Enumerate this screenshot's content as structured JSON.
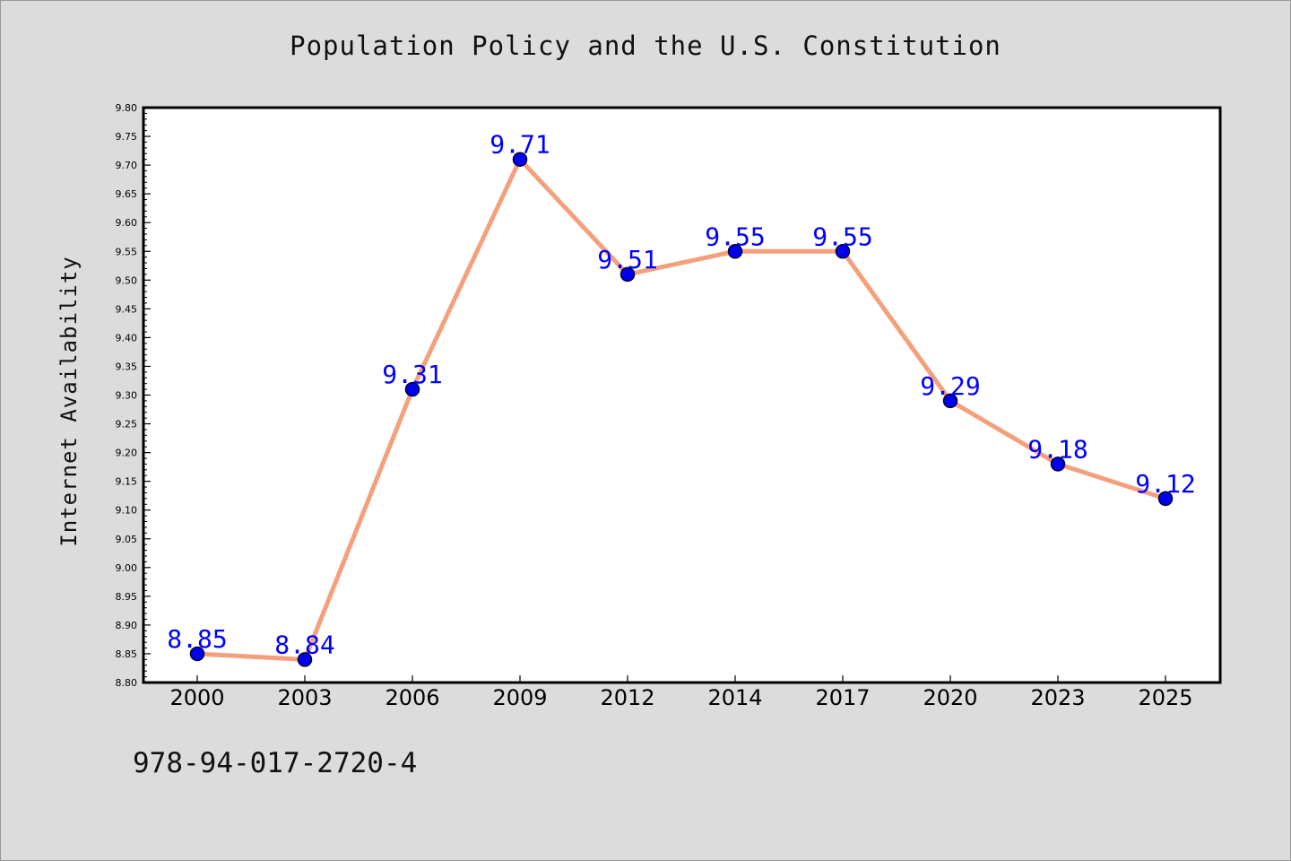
{
  "title": "Population Policy and the U.S. Constitution",
  "footer_code": "978-94-017-2720-4",
  "chart_data": {
    "type": "line",
    "title": "Population Policy and the U.S. Constitution",
    "xlabel": "",
    "ylabel": "Internet Availability",
    "categories": [
      "2000",
      "2003",
      "2006",
      "2009",
      "2012",
      "2014",
      "2017",
      "2020",
      "2023",
      "2025"
    ],
    "series": [
      {
        "values": [
          8.85,
          8.84,
          9.31,
          9.71,
          9.51,
          9.55,
          9.55,
          9.29,
          9.18,
          9.12
        ],
        "labels": [
          "8.85",
          "8.84",
          "9.31",
          "9.71",
          "9.51",
          "9.55",
          "9.55",
          "9.29",
          "9.18",
          "9.12"
        ]
      }
    ],
    "ylim": [
      8.8,
      9.8
    ],
    "yticks": [
      "8.80",
      "8.85",
      "8.90",
      "8.95",
      "9.00",
      "9.05",
      "9.10",
      "9.15",
      "9.20",
      "9.25",
      "9.30",
      "9.35",
      "9.40",
      "9.45",
      "9.50",
      "9.55",
      "9.60",
      "9.65",
      "9.70",
      "9.75",
      "9.80"
    ],
    "grid": false,
    "legend": "none",
    "colors": {
      "line": "#f4a07c",
      "marker_fill": "#0000ee",
      "marker_edge": "#000033",
      "data_label": "#0000ff",
      "plot_background": "#ffffff",
      "page_background": "#dcdcdc"
    }
  }
}
